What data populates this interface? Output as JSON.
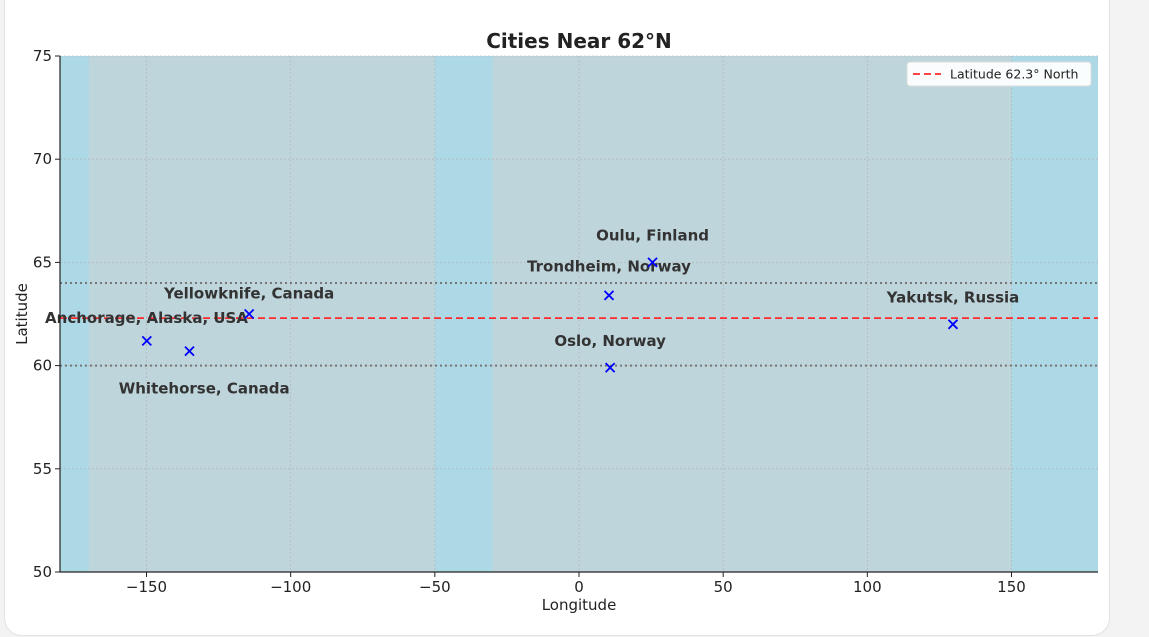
{
  "chart_data": {
    "type": "scatter",
    "title": "Cities Near 62°N",
    "xlabel": "Longitude",
    "ylabel": "Latitude",
    "xlim": [
      -180,
      180
    ],
    "ylim": [
      50,
      75
    ],
    "xticks": [
      -150,
      -100,
      -50,
      0,
      50,
      100,
      150
    ],
    "xtick_labels": [
      "−150",
      "−100",
      "−50",
      "0",
      "50",
      "100",
      "150"
    ],
    "yticks": [
      50,
      55,
      60,
      65,
      70,
      75
    ],
    "ytick_labels": [
      "50",
      "55",
      "60",
      "65",
      "70",
      "75"
    ],
    "grid": true,
    "background_color": "#bfd5dc",
    "water_color": "#add8e6",
    "ocean_bands": [
      [
        -180,
        -170
      ],
      [
        -50,
        -30
      ],
      [
        150,
        180
      ]
    ],
    "marker": "x",
    "marker_color": "#0000ff",
    "points": [
      {
        "name": "Anchorage, Alaska, USA",
        "lon": -149.9,
        "lat": 61.2,
        "label_lon": -150,
        "label_lat": 62.3
      },
      {
        "name": "Whitehorse, Canada",
        "lon": -135.1,
        "lat": 60.7,
        "label_lon": -130,
        "label_lat": 58.9
      },
      {
        "name": "Yellowknife, Canada",
        "lon": -114.4,
        "lat": 62.5,
        "label_lon": -114.4,
        "label_lat": 63.5
      },
      {
        "name": "Trondheim, Norway",
        "lon": 10.4,
        "lat": 63.4,
        "label_lon": 10.4,
        "label_lat": 64.8
      },
      {
        "name": "Oulu, Finland",
        "lon": 25.5,
        "lat": 65.0,
        "label_lon": 25.5,
        "label_lat": 66.3
      },
      {
        "name": "Oslo, Norway",
        "lon": 10.8,
        "lat": 59.9,
        "label_lon": 10.8,
        "label_lat": 61.2
      },
      {
        "name": "Yakutsk, Russia",
        "lon": 129.7,
        "lat": 62.0,
        "label_lon": 129.7,
        "label_lat": 63.3
      }
    ],
    "reference_line": {
      "y": 62.3,
      "label": "Latitude 62.3° North",
      "color": "#ff2a2a",
      "style": "dashed"
    },
    "bounds_lines": [
      {
        "y": 64,
        "color": "#777777",
        "style": "dotted"
      },
      {
        "y": 60,
        "color": "#777777",
        "style": "dotted"
      }
    ],
    "legend_position": "top-right"
  }
}
